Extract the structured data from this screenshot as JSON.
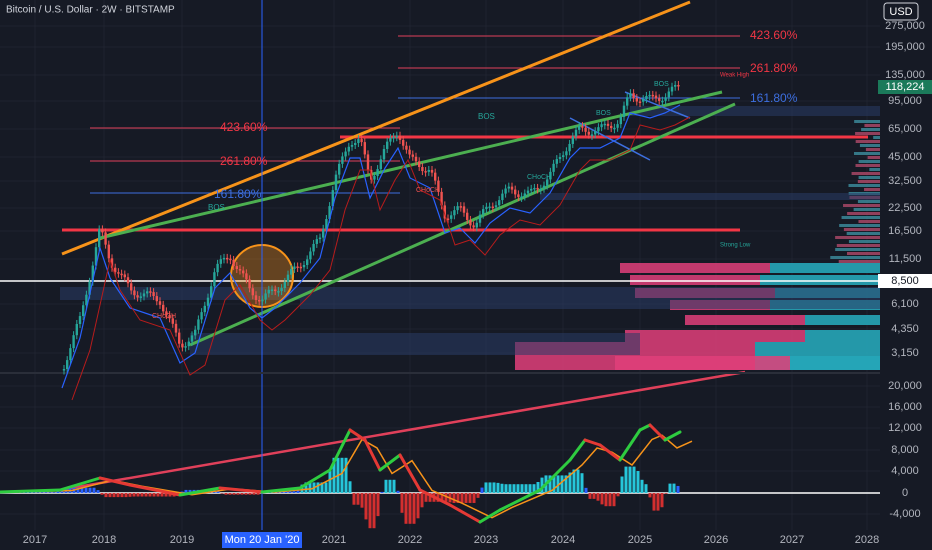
{
  "header": {
    "title": "Bitcoin / U.S. Dollar · 2W · BITSTAMP",
    "currency": "USD"
  },
  "price_axis": {
    "labels": [
      "275,000",
      "195,000",
      "135,000",
      "95,000",
      "65,000",
      "45,000",
      "32,500",
      "22,500",
      "16,500",
      "11,500",
      "6,100",
      "4,350",
      "3,150"
    ],
    "last_price": "118,224",
    "crosshair_price": "8,500"
  },
  "indicator_axis": {
    "labels": [
      "20,000",
      "16,000",
      "12,000",
      "8,000",
      "4,000",
      "0",
      "-4,000"
    ]
  },
  "time_axis": {
    "labels": [
      "2017",
      "2018",
      "2019",
      "2021",
      "2022",
      "2023",
      "2024",
      "2025",
      "2026",
      "2027",
      "2028"
    ],
    "crosshair_date": "Mon 20 Jan '20"
  },
  "annotations": [
    {
      "text": "423.60%"
    },
    {
      "text": "261.80%"
    },
    {
      "text": "161.80%"
    },
    {
      "text": "423.60%"
    },
    {
      "text": "261.80%"
    },
    {
      "text": "161.80%"
    },
    {
      "text": "BOS"
    },
    {
      "text": "BOS"
    },
    {
      "text": "BOS"
    },
    {
      "text": "BOS"
    },
    {
      "text": "CHoCH"
    },
    {
      "text": "CHoCH"
    },
    {
      "text": "CHoCH"
    },
    {
      "text": "Weak High"
    },
    {
      "text": "Strong Low"
    }
  ]
}
